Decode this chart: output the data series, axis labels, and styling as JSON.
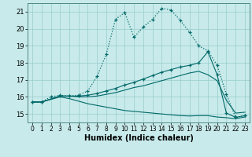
{
  "xlabel": "Humidex (Indice chaleur)",
  "background_color": "#c8eaea",
  "grid_color": "#98cccc",
  "line_color": "#006868",
  "xlim": [
    -0.5,
    23.5
  ],
  "ylim": [
    14.5,
    21.5
  ],
  "xticks": [
    0,
    1,
    2,
    3,
    4,
    5,
    6,
    7,
    8,
    9,
    10,
    11,
    12,
    13,
    14,
    15,
    16,
    17,
    18,
    19,
    20,
    21,
    22,
    23
  ],
  "yticks": [
    15,
    16,
    17,
    18,
    19,
    20,
    21
  ],
  "line0_x": [
    0,
    1,
    2,
    3,
    4,
    5,
    6,
    7,
    8,
    9,
    10,
    11,
    12,
    13,
    14,
    15,
    16,
    17,
    18,
    19,
    20,
    21,
    22,
    23
  ],
  "line0_y": [
    15.7,
    15.7,
    16.0,
    16.1,
    16.05,
    16.1,
    16.35,
    17.2,
    18.5,
    20.55,
    20.95,
    19.5,
    20.1,
    20.55,
    21.2,
    21.1,
    20.5,
    19.8,
    19.0,
    18.7,
    17.85,
    16.15,
    14.8,
    14.9
  ],
  "line1_x": [
    0,
    1,
    3,
    4,
    5,
    6,
    7,
    8,
    9,
    10,
    11,
    12,
    13,
    14,
    15,
    16,
    17,
    18,
    19,
    20,
    21,
    22,
    23
  ],
  "line1_y": [
    15.7,
    15.7,
    16.05,
    16.05,
    16.05,
    16.1,
    16.2,
    16.35,
    16.5,
    16.7,
    16.85,
    17.05,
    17.25,
    17.45,
    17.6,
    17.75,
    17.85,
    18.0,
    18.65,
    17.3,
    15.05,
    14.8,
    14.9
  ],
  "line2_x": [
    0,
    1,
    3,
    4,
    5,
    6,
    7,
    8,
    9,
    10,
    11,
    12,
    13,
    14,
    15,
    16,
    17,
    18,
    19,
    20,
    21,
    22,
    23
  ],
  "line2_y": [
    15.7,
    15.7,
    16.05,
    16.05,
    16.0,
    16.0,
    16.05,
    16.15,
    16.25,
    16.4,
    16.55,
    16.65,
    16.8,
    16.95,
    17.1,
    17.25,
    17.4,
    17.5,
    17.3,
    16.95,
    15.8,
    15.05,
    15.1
  ],
  "line3_x": [
    0,
    1,
    3,
    4,
    5,
    6,
    7,
    8,
    9,
    10,
    11,
    12,
    13,
    14,
    15,
    16,
    17,
    18,
    19,
    20,
    21,
    22,
    23
  ],
  "line3_y": [
    15.7,
    15.7,
    16.0,
    15.9,
    15.75,
    15.6,
    15.5,
    15.4,
    15.3,
    15.2,
    15.15,
    15.1,
    15.05,
    15.0,
    14.95,
    14.9,
    14.88,
    14.9,
    14.9,
    14.82,
    14.78,
    14.72,
    14.82
  ]
}
